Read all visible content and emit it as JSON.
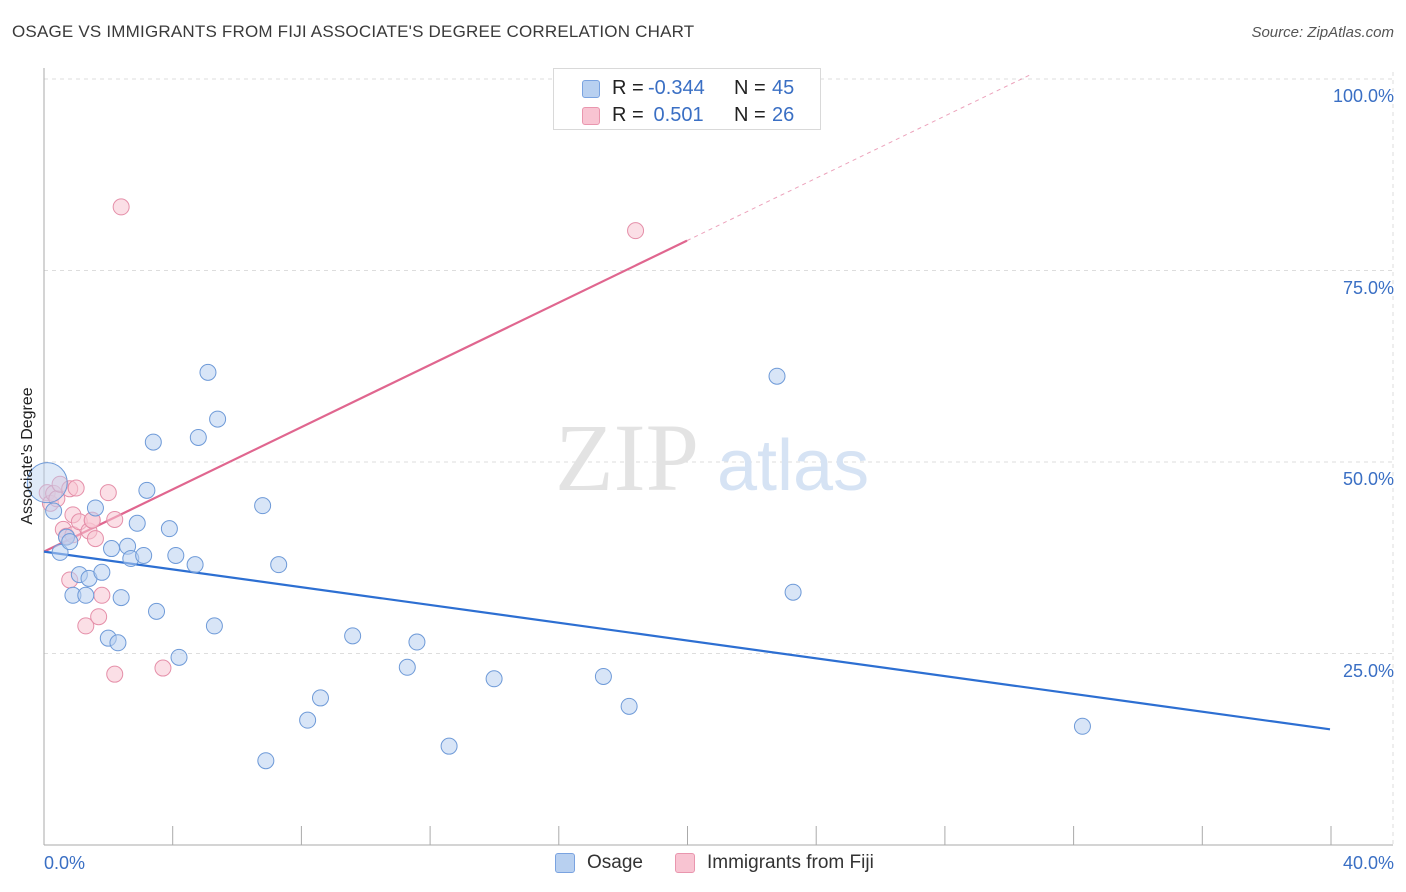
{
  "header": {
    "title": "OSAGE VS IMMIGRANTS FROM FIJI ASSOCIATE'S DEGREE CORRELATION CHART",
    "source": "Source: ZipAtlas.com"
  },
  "watermark": {
    "zip": "ZIP",
    "atlas": "atlas"
  },
  "legend": {
    "rows": [
      {
        "r_label": "R =",
        "r_value": "-0.344",
        "n_label": "N =",
        "n_value": "45",
        "color": "#b8d0f0",
        "border": "#7aa3e0"
      },
      {
        "r_label": "R =",
        "r_value": " 0.501",
        "n_label": "N =",
        "n_value": "26",
        "color": "#f8c4d2",
        "border": "#e996ae"
      }
    ]
  },
  "colors": {
    "osage_fill": "#b8d0f0",
    "osage_stroke": "#6e9ad8",
    "osage_line": "#2d6fd2",
    "fiji_fill": "#f8c4d2",
    "fiji_stroke": "#e58fa9",
    "fiji_line": "#e0668f",
    "axis_label": "#3a6fc4",
    "grid": "#dddddd"
  },
  "chart_data": {
    "type": "scatter",
    "title": "OSAGE VS IMMIGRANTS FROM FIJI ASSOCIATE'S DEGREE CORRELATION CHART",
    "xlabel": "",
    "ylabel": "Associate's Degree",
    "xlim": [
      0,
      40
    ],
    "ylim": [
      0,
      101
    ],
    "x_tick_labels": [
      "0.0%",
      "40.0%"
    ],
    "y_ticks": [
      25,
      50,
      75,
      100
    ],
    "y_tick_labels": [
      "25.0%",
      "50.0%",
      "75.0%",
      "100.0%"
    ],
    "grid": true,
    "legend_position": "top-center",
    "series": [
      {
        "name": "Osage",
        "r": -0.344,
        "n": 45,
        "trend": {
          "x": [
            0,
            40
          ],
          "y": [
            38.3,
            15.1
          ]
        },
        "points": [
          [
            0.1,
            47.3
          ],
          [
            0.3,
            43.6
          ],
          [
            0.5,
            38.2
          ],
          [
            0.7,
            40.2
          ],
          [
            0.8,
            39.6
          ],
          [
            0.9,
            32.6
          ],
          [
            1.1,
            35.3
          ],
          [
            1.3,
            32.6
          ],
          [
            1.4,
            34.8
          ],
          [
            1.6,
            44.0
          ],
          [
            1.8,
            35.6
          ],
          [
            2.0,
            27.0
          ],
          [
            2.1,
            38.7
          ],
          [
            2.3,
            26.4
          ],
          [
            2.4,
            32.3
          ],
          [
            2.6,
            39.0
          ],
          [
            2.7,
            37.4
          ],
          [
            2.9,
            42.0
          ],
          [
            3.1,
            37.8
          ],
          [
            3.2,
            46.3
          ],
          [
            3.4,
            52.6
          ],
          [
            3.5,
            30.5
          ],
          [
            3.9,
            41.3
          ],
          [
            4.1,
            37.8
          ],
          [
            4.2,
            24.5
          ],
          [
            4.7,
            36.6
          ],
          [
            4.8,
            53.2
          ],
          [
            5.1,
            61.7
          ],
          [
            5.3,
            28.6
          ],
          [
            5.4,
            55.6
          ],
          [
            6.8,
            44.3
          ],
          [
            6.9,
            11.0
          ],
          [
            7.3,
            36.6
          ],
          [
            8.2,
            16.3
          ],
          [
            8.6,
            19.2
          ],
          [
            9.6,
            27.3
          ],
          [
            11.3,
            23.2
          ],
          [
            11.6,
            26.5
          ],
          [
            12.6,
            12.9
          ],
          [
            14.0,
            21.7
          ],
          [
            17.4,
            22.0
          ],
          [
            18.2,
            18.1
          ],
          [
            22.8,
            61.2
          ],
          [
            23.3,
            33.0
          ],
          [
            32.3,
            15.5
          ]
        ]
      },
      {
        "name": "Immigrants from Fiji",
        "r": 0.501,
        "n": 26,
        "trend": {
          "x": [
            0,
            20
          ],
          "y": [
            38.3,
            78.9
          ]
        },
        "trend_dashed": {
          "x": [
            20,
            30.7
          ],
          "y": [
            78.9,
            100.6
          ]
        },
        "points": [
          [
            0.1,
            46.0
          ],
          [
            0.2,
            44.6
          ],
          [
            0.3,
            45.9
          ],
          [
            0.4,
            45.2
          ],
          [
            0.5,
            47.1
          ],
          [
            0.6,
            41.2
          ],
          [
            0.7,
            40.3
          ],
          [
            0.8,
            34.6
          ],
          [
            0.8,
            46.5
          ],
          [
            0.9,
            43.1
          ],
          [
            0.9,
            40.5
          ],
          [
            1.0,
            46.6
          ],
          [
            1.1,
            42.2
          ],
          [
            1.3,
            28.6
          ],
          [
            1.4,
            41.0
          ],
          [
            1.5,
            42.4
          ],
          [
            1.5,
            42.4
          ],
          [
            1.6,
            40.0
          ],
          [
            1.7,
            29.8
          ],
          [
            1.8,
            32.6
          ],
          [
            2.0,
            46.0
          ],
          [
            2.2,
            42.5
          ],
          [
            2.2,
            22.3
          ],
          [
            2.4,
            83.3
          ],
          [
            3.7,
            23.1
          ],
          [
            18.4,
            80.2
          ]
        ]
      }
    ]
  }
}
